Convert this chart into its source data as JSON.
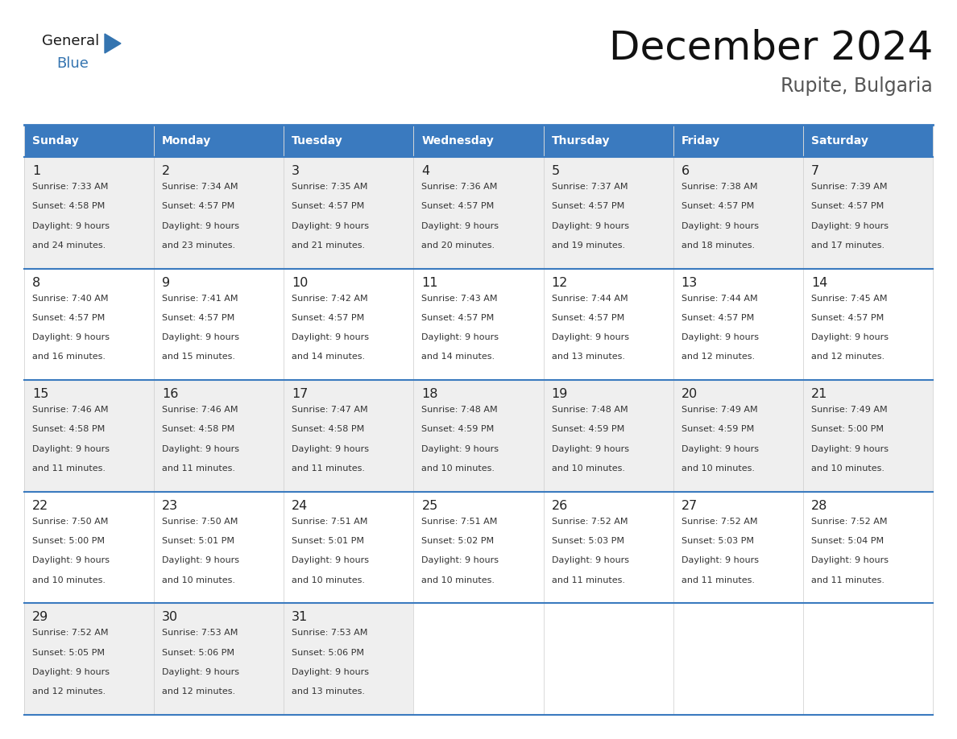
{
  "title": "December 2024",
  "subtitle": "Rupite, Bulgaria",
  "header_bg": "#3a7abf",
  "header_text_color": "#ffffff",
  "days_of_week": [
    "Sunday",
    "Monday",
    "Tuesday",
    "Wednesday",
    "Thursday",
    "Friday",
    "Saturday"
  ],
  "cell_bg_odd": "#efefef",
  "cell_bg_even": "#ffffff",
  "border_color": "#3a7abf",
  "grid_line_color": "#aaaaaa",
  "text_color": "#333333",
  "day_num_color": "#222222",
  "calendar": [
    [
      {
        "day": 1,
        "sunrise": "7:33 AM",
        "sunset": "4:58 PM",
        "daylight": "9 hours and 24 minutes."
      },
      {
        "day": 2,
        "sunrise": "7:34 AM",
        "sunset": "4:57 PM",
        "daylight": "9 hours and 23 minutes."
      },
      {
        "day": 3,
        "sunrise": "7:35 AM",
        "sunset": "4:57 PM",
        "daylight": "9 hours and 21 minutes."
      },
      {
        "day": 4,
        "sunrise": "7:36 AM",
        "sunset": "4:57 PM",
        "daylight": "9 hours and 20 minutes."
      },
      {
        "day": 5,
        "sunrise": "7:37 AM",
        "sunset": "4:57 PM",
        "daylight": "9 hours and 19 minutes."
      },
      {
        "day": 6,
        "sunrise": "7:38 AM",
        "sunset": "4:57 PM",
        "daylight": "9 hours and 18 minutes."
      },
      {
        "day": 7,
        "sunrise": "7:39 AM",
        "sunset": "4:57 PM",
        "daylight": "9 hours and 17 minutes."
      }
    ],
    [
      {
        "day": 8,
        "sunrise": "7:40 AM",
        "sunset": "4:57 PM",
        "daylight": "9 hours and 16 minutes."
      },
      {
        "day": 9,
        "sunrise": "7:41 AM",
        "sunset": "4:57 PM",
        "daylight": "9 hours and 15 minutes."
      },
      {
        "day": 10,
        "sunrise": "7:42 AM",
        "sunset": "4:57 PM",
        "daylight": "9 hours and 14 minutes."
      },
      {
        "day": 11,
        "sunrise": "7:43 AM",
        "sunset": "4:57 PM",
        "daylight": "9 hours and 14 minutes."
      },
      {
        "day": 12,
        "sunrise": "7:44 AM",
        "sunset": "4:57 PM",
        "daylight": "9 hours and 13 minutes."
      },
      {
        "day": 13,
        "sunrise": "7:44 AM",
        "sunset": "4:57 PM",
        "daylight": "9 hours and 12 minutes."
      },
      {
        "day": 14,
        "sunrise": "7:45 AM",
        "sunset": "4:57 PM",
        "daylight": "9 hours and 12 minutes."
      }
    ],
    [
      {
        "day": 15,
        "sunrise": "7:46 AM",
        "sunset": "4:58 PM",
        "daylight": "9 hours and 11 minutes."
      },
      {
        "day": 16,
        "sunrise": "7:46 AM",
        "sunset": "4:58 PM",
        "daylight": "9 hours and 11 minutes."
      },
      {
        "day": 17,
        "sunrise": "7:47 AM",
        "sunset": "4:58 PM",
        "daylight": "9 hours and 11 minutes."
      },
      {
        "day": 18,
        "sunrise": "7:48 AM",
        "sunset": "4:59 PM",
        "daylight": "9 hours and 10 minutes."
      },
      {
        "day": 19,
        "sunrise": "7:48 AM",
        "sunset": "4:59 PM",
        "daylight": "9 hours and 10 minutes."
      },
      {
        "day": 20,
        "sunrise": "7:49 AM",
        "sunset": "4:59 PM",
        "daylight": "9 hours and 10 minutes."
      },
      {
        "day": 21,
        "sunrise": "7:49 AM",
        "sunset": "5:00 PM",
        "daylight": "9 hours and 10 minutes."
      }
    ],
    [
      {
        "day": 22,
        "sunrise": "7:50 AM",
        "sunset": "5:00 PM",
        "daylight": "9 hours and 10 minutes."
      },
      {
        "day": 23,
        "sunrise": "7:50 AM",
        "sunset": "5:01 PM",
        "daylight": "9 hours and 10 minutes."
      },
      {
        "day": 24,
        "sunrise": "7:51 AM",
        "sunset": "5:01 PM",
        "daylight": "9 hours and 10 minutes."
      },
      {
        "day": 25,
        "sunrise": "7:51 AM",
        "sunset": "5:02 PM",
        "daylight": "9 hours and 10 minutes."
      },
      {
        "day": 26,
        "sunrise": "7:52 AM",
        "sunset": "5:03 PM",
        "daylight": "9 hours and 11 minutes."
      },
      {
        "day": 27,
        "sunrise": "7:52 AM",
        "sunset": "5:03 PM",
        "daylight": "9 hours and 11 minutes."
      },
      {
        "day": 28,
        "sunrise": "7:52 AM",
        "sunset": "5:04 PM",
        "daylight": "9 hours and 11 minutes."
      }
    ],
    [
      {
        "day": 29,
        "sunrise": "7:52 AM",
        "sunset": "5:05 PM",
        "daylight": "9 hours and 12 minutes."
      },
      {
        "day": 30,
        "sunrise": "7:53 AM",
        "sunset": "5:06 PM",
        "daylight": "9 hours and 12 minutes."
      },
      {
        "day": 31,
        "sunrise": "7:53 AM",
        "sunset": "5:06 PM",
        "daylight": "9 hours and 13 minutes."
      },
      null,
      null,
      null,
      null
    ]
  ],
  "logo_general_color": "#1a1a1a",
  "logo_blue_color": "#3474b0",
  "fig_width": 11.88,
  "fig_height": 9.18
}
